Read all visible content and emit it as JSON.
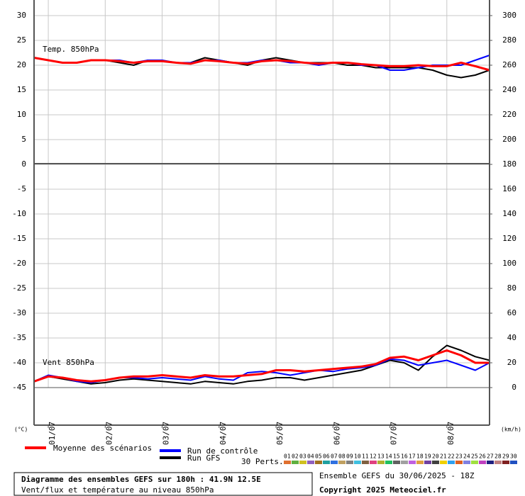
{
  "chart_data": {
    "type": "line",
    "title": "Diagramme des ensembles GEFS sur 180h : 41.9N 12.5E",
    "subtitle": "Vent/flux et température au niveau 850hPa",
    "annotations": [
      "Temp. 850hPa",
      "Vent 850hPa"
    ],
    "ylabel": "(°C)",
    "y2label": "(km/h)",
    "categories": [
      null,
      "01/07",
      null,
      null,
      null,
      "02/07",
      null,
      null,
      null,
      "03/07",
      null,
      null,
      null,
      "04/07",
      null,
      null,
      null,
      "05/07",
      null,
      null,
      null,
      "06/07",
      null,
      null,
      null,
      "07/07",
      null,
      null,
      null,
      "08/07",
      null,
      null,
      null
    ],
    "ylim": [
      -45,
      33
    ],
    "yticks": [
      30,
      25,
      20,
      15,
      10,
      5,
      0,
      -5,
      -10,
      -15,
      -20,
      -25,
      -30,
      -35,
      -40,
      -45
    ],
    "y2lim": [
      0,
      312
    ],
    "y2ticks": [
      300,
      280,
      260,
      240,
      220,
      200,
      180,
      160,
      140,
      120,
      100,
      80,
      60,
      40,
      20,
      0
    ],
    "grid": true,
    "series": [
      {
        "name": "Run GFS",
        "color": "#000000",
        "values": [
          21.5,
          21,
          20.5,
          20.5,
          21,
          21,
          20.5,
          20,
          21,
          20.8,
          20.5,
          20.5,
          21.5,
          21,
          20.5,
          20,
          21,
          21.5,
          21,
          20.5,
          20.5,
          20.5,
          20,
          20,
          19.5,
          19.5,
          19.5,
          19.5,
          19,
          18,
          17.5,
          18,
          19
        ],
        "values_y2": [
          5,
          9,
          7,
          5,
          3,
          4,
          6,
          7,
          6,
          5,
          4,
          3,
          5,
          4,
          3,
          5,
          6,
          8,
          8,
          6,
          8,
          10,
          12,
          14,
          18,
          22,
          20,
          14,
          25,
          34,
          30,
          25,
          22
        ]
      },
      {
        "name": "Run de contrôle",
        "color": "#0000ff",
        "values": [
          21.5,
          21,
          20.5,
          20.5,
          21,
          21,
          21,
          20.5,
          21,
          21,
          20.5,
          20.5,
          21,
          21,
          20.5,
          20.5,
          21,
          21,
          20.5,
          20.5,
          20,
          20.5,
          20.5,
          20,
          20,
          19,
          19,
          19.5,
          20,
          20,
          20,
          21,
          22
        ],
        "values_y2": [
          5,
          10,
          8,
          5,
          4,
          6,
          8,
          8,
          7,
          8,
          7,
          6,
          9,
          7,
          6,
          12,
          13,
          12,
          10,
          12,
          14,
          13,
          15,
          16,
          18,
          23,
          22,
          18,
          20,
          22,
          18,
          14,
          20
        ]
      },
      {
        "name": "Moyenne des scénarios",
        "color": "#ff0000",
        "values": [
          21.5,
          21,
          20.5,
          20.5,
          21,
          21,
          20.8,
          20.5,
          20.8,
          20.8,
          20.5,
          20.3,
          21,
          20.8,
          20.5,
          20.3,
          20.8,
          21,
          20.8,
          20.5,
          20.3,
          20.5,
          20.5,
          20.2,
          20,
          19.8,
          19.8,
          20,
          19.8,
          19.8,
          20.5,
          19.8,
          19
        ],
        "values_y2": [
          5,
          9,
          8,
          6,
          5,
          6,
          8,
          9,
          9,
          10,
          9,
          8,
          10,
          9,
          9,
          10,
          11,
          14,
          14,
          13,
          14,
          15,
          16,
          17,
          19,
          24,
          25,
          22,
          26,
          30,
          26,
          20,
          20
        ]
      }
    ],
    "perturbations": {
      "label": "30 Perts.",
      "names": [
        "01",
        "02",
        "03",
        "04",
        "05",
        "06",
        "07",
        "08",
        "09",
        "10",
        "11",
        "12",
        "13",
        "14",
        "15",
        "16",
        "17",
        "18",
        "19",
        "20",
        "21",
        "22",
        "23",
        "24",
        "25",
        "26",
        "27",
        "28",
        "29",
        "30"
      ],
      "colors": [
        "#e07030",
        "#60b040",
        "#d0c020",
        "#9060c0",
        "#a07020",
        "#20a0a0",
        "#3070e0",
        "#c0a060",
        "#808080",
        "#40c0e0",
        "#806040",
        "#e04080",
        "#b0b030",
        "#20c060",
        "#606060",
        "#a0a0a0",
        "#c060e0",
        "#e0a040",
        "#7040a0",
        "#404040",
        "#f0d000",
        "#30a0f0",
        "#e06020",
        "#8080e0",
        "#a0e040",
        "#c040c0",
        "#202080",
        "#c08080",
        "#802020",
        "#2050c0"
      ]
    },
    "footer": {
      "run": "Ensemble GEFS du 30/06/2025 - 18Z",
      "copyright": "Copyright 2025 Meteociel.fr"
    }
  }
}
